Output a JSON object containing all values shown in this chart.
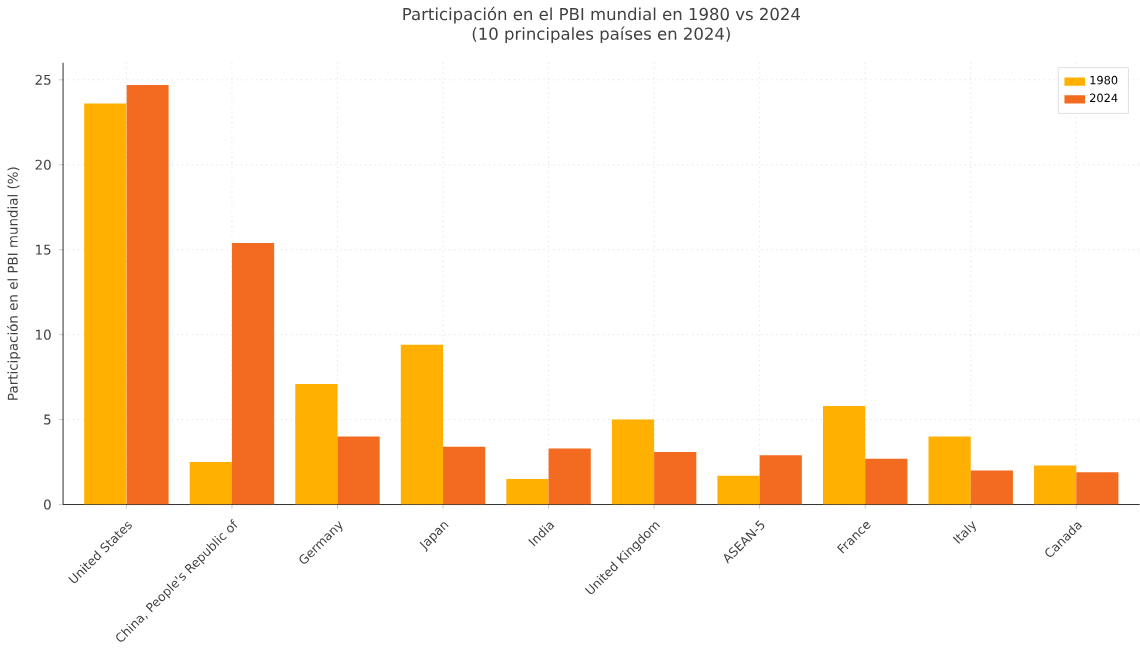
{
  "chart_data": {
    "type": "bar",
    "title": "Participación en el PBI mundial en 1980 vs 2024\n(10 principales países en 2024)",
    "ylabel": "Participación en el PBI mundial (%)",
    "categories": [
      "United States",
      "China, People's Republic of",
      "Germany",
      "Japan",
      "India",
      "United Kingdom",
      "ASEAN-5",
      "France",
      "Italy",
      "Canada"
    ],
    "series": [
      {
        "name": "1980",
        "color": "#ffb000",
        "values": [
          23.6,
          2.5,
          7.1,
          9.4,
          1.5,
          5.0,
          1.7,
          5.8,
          4.0,
          2.3
        ]
      },
      {
        "name": "2024",
        "color": "#f26b21",
        "values": [
          24.7,
          15.4,
          4.0,
          3.4,
          3.3,
          3.1,
          2.9,
          2.7,
          2.0,
          1.9
        ]
      }
    ],
    "ylim": [
      0,
      26
    ],
    "yticks": [
      0,
      5,
      10,
      15,
      20,
      25
    ],
    "grid": true,
    "legend": "top right"
  }
}
